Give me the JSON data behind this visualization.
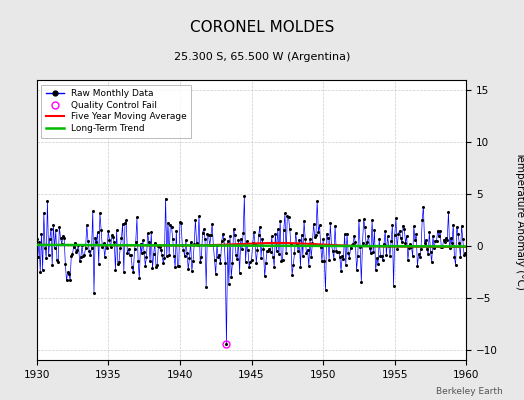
{
  "title": "CORONEL MOLDES",
  "subtitle": "25.300 S, 65.500 W (Argentina)",
  "ylabel": "Temperature Anomaly (°C)",
  "watermark": "Berkeley Earth",
  "x_start": 1930,
  "x_end": 1960,
  "ylim": [
    -11,
    16
  ],
  "yticks": [
    -10,
    -5,
    0,
    5,
    10,
    15
  ],
  "xticks": [
    1930,
    1935,
    1940,
    1945,
    1950,
    1955,
    1960
  ],
  "raw_color": "#0000ff",
  "ma_color": "#ff0000",
  "trend_color": "#00bb00",
  "qc_color": "#ff00ff",
  "bg_color": "#e8e8e8",
  "plot_bg": "#ffffff",
  "grid_color": "#cccccc",
  "title_fontsize": 11,
  "subtitle_fontsize": 8,
  "seed": 12
}
